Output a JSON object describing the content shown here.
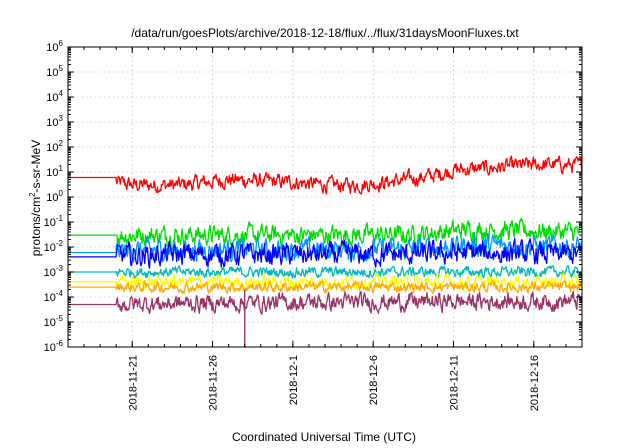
{
  "chart_data": {
    "type": "line",
    "title": "/data/run/goesPlots/archive/2018-12-18/flux/../flux/31daysMoonFluxes.txt",
    "xlabel": "Coordinated Universal Time (UTC)",
    "ylabel_base": "protons/cm",
    "ylabel_exp": "2",
    "ylabel_rest": "-s-sr-MeV",
    "y_scale": "log",
    "ylim": [
      1e-06,
      1000000.0
    ],
    "xlim": [
      "2018-11-17",
      "2018-12-19"
    ],
    "x_ticks": [
      {
        "date": "2018-11-21",
        "label": "2018-11-21"
      },
      {
        "date": "2018-11-26",
        "label": "2018-11-26"
      },
      {
        "date": "2018-12-01",
        "label": "2018-12-1"
      },
      {
        "date": "2018-12-06",
        "label": "2018-12-6"
      },
      {
        "date": "2018-12-11",
        "label": "2018-12-11"
      },
      {
        "date": "2018-12-16",
        "label": "2018-12-16"
      }
    ],
    "y_ticks": [
      {
        "value": 1e-06,
        "base": "10",
        "exp": "-6"
      },
      {
        "value": 1e-05,
        "base": "10",
        "exp": "-5"
      },
      {
        "value": 0.0001,
        "base": "10",
        "exp": "-4"
      },
      {
        "value": 0.001,
        "base": "10",
        "exp": "-3"
      },
      {
        "value": 0.01,
        "base": "10",
        "exp": "-2"
      },
      {
        "value": 0.1,
        "base": "10",
        "exp": "-1"
      },
      {
        "value": 1,
        "base": "10",
        "exp": "0"
      },
      {
        "value": 10,
        "base": "10",
        "exp": "1"
      },
      {
        "value": 100,
        "base": "10",
        "exp": "2"
      },
      {
        "value": 1000,
        "base": "10",
        "exp": "3"
      },
      {
        "value": 10000,
        "base": "10",
        "exp": "4"
      },
      {
        "value": 100000,
        "base": "10",
        "exp": "5"
      },
      {
        "value": 1000000,
        "base": "10",
        "exp": "6"
      }
    ],
    "grid": true,
    "series": [
      {
        "color": "#ff0000",
        "noise": 0.22,
        "pts": [
          [
            "2018-11-17",
            6
          ],
          [
            "2018-11-19",
            5
          ],
          [
            "2018-11-21",
            3
          ],
          [
            "2018-11-24",
            3
          ],
          [
            "2018-11-27",
            5
          ],
          [
            "2018-11-30",
            4
          ],
          [
            "2018-12-01",
            4
          ],
          [
            "2018-12-03",
            3
          ],
          [
            "2018-12-05",
            3
          ],
          [
            "2018-12-07",
            4
          ],
          [
            "2018-12-09",
            6
          ],
          [
            "2018-12-10",
            8
          ],
          [
            "2018-12-11",
            12
          ],
          [
            "2018-12-13",
            14
          ],
          [
            "2018-12-15",
            18
          ],
          [
            "2018-12-17",
            20
          ],
          [
            "2018-12-19",
            18
          ]
        ]
      },
      {
        "color": "#00dd00",
        "noise": 0.28,
        "pts": [
          [
            "2018-11-17",
            0.03
          ],
          [
            "2018-11-24",
            0.03
          ],
          [
            "2018-12-01",
            0.03
          ],
          [
            "2018-12-08",
            0.03
          ],
          [
            "2018-12-12",
            0.05
          ],
          [
            "2018-12-19",
            0.04
          ]
        ]
      },
      {
        "color": "#0099ff",
        "noise": 0.3,
        "pts": [
          [
            "2018-11-17",
            0.006
          ],
          [
            "2018-11-24",
            0.008
          ],
          [
            "2018-12-01",
            0.008
          ],
          [
            "2018-12-08",
            0.008
          ],
          [
            "2018-12-12",
            0.012
          ],
          [
            "2018-12-19",
            0.01
          ]
        ]
      },
      {
        "color": "#0000ff",
        "noise": 0.32,
        "pts": [
          [
            "2018-11-17",
            0.004
          ],
          [
            "2018-11-24",
            0.005
          ],
          [
            "2018-12-01",
            0.005
          ],
          [
            "2018-12-08",
            0.005
          ],
          [
            "2018-12-12",
            0.006
          ],
          [
            "2018-12-19",
            0.005
          ]
        ]
      },
      {
        "color": "#00bbbb",
        "noise": 0.15,
        "pts": [
          [
            "2018-11-17",
            0.001
          ],
          [
            "2018-12-01",
            0.001
          ],
          [
            "2018-12-19",
            0.001
          ]
        ]
      },
      {
        "color": "#ffff00",
        "noise": 0.18,
        "pts": [
          [
            "2018-11-17",
            0.0004
          ],
          [
            "2018-12-01",
            0.0004
          ],
          [
            "2018-12-19",
            0.0004
          ]
        ]
      },
      {
        "color": "#ffaa00",
        "noise": 0.15,
        "pts": [
          [
            "2018-11-17",
            0.00025
          ],
          [
            "2018-12-01",
            0.00025
          ],
          [
            "2018-12-19",
            0.00025
          ]
        ]
      },
      {
        "color": "#993366",
        "noise": 0.25,
        "pts": [
          [
            "2018-11-17",
            5e-05
          ],
          [
            "2018-12-01",
            6e-05
          ],
          [
            "2018-12-19",
            7e-05
          ]
        ]
      }
    ],
    "dropout": {
      "color": "#993366",
      "date": "2018-11-28",
      "low": 1e-06
    }
  }
}
